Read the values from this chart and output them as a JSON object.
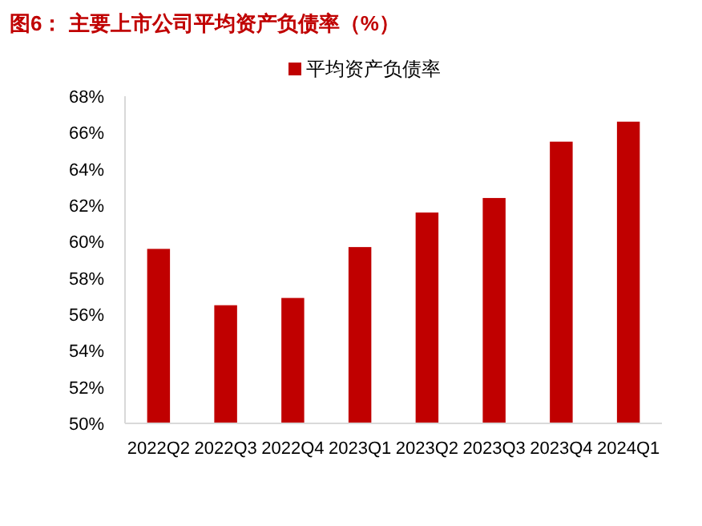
{
  "chart_data": {
    "type": "bar",
    "title": "图6：  主要上市公司平均资产负债率（%）",
    "categories": [
      "2022Q2",
      "2022Q3",
      "2022Q4",
      "2023Q1",
      "2023Q2",
      "2023Q3",
      "2023Q4",
      "2024Q1"
    ],
    "series": [
      {
        "name": "平均资产负债率",
        "color": "#c00000",
        "values": [
          59.6,
          56.5,
          56.9,
          59.7,
          61.6,
          62.4,
          65.5,
          66.6
        ]
      }
    ],
    "ylim": [
      50,
      68
    ],
    "yticks": [
      {
        "value": 50,
        "label": "50%"
      },
      {
        "value": 52,
        "label": "52%"
      },
      {
        "value": 54,
        "label": "54%"
      },
      {
        "value": 56,
        "label": "56%"
      },
      {
        "value": 58,
        "label": "58%"
      },
      {
        "value": 60,
        "label": "60%"
      },
      {
        "value": 62,
        "label": "62%"
      },
      {
        "value": 64,
        "label": "64%"
      },
      {
        "value": 66,
        "label": "66%"
      },
      {
        "value": 68,
        "label": "68%"
      }
    ],
    "legend": "top",
    "grid": false
  }
}
